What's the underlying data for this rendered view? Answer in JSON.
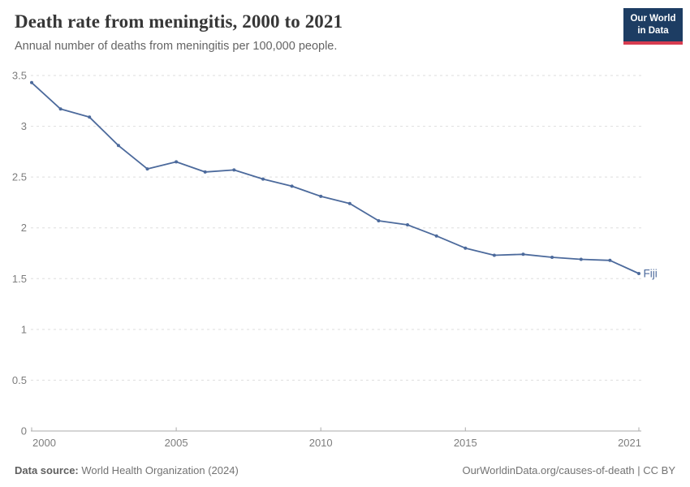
{
  "header": {
    "title": "Death rate from meningitis, 2000 to 2021",
    "subtitle": "Annual number of deaths from meningitis per 100,000 people."
  },
  "logo": {
    "line1": "Our World",
    "line2": "in Data",
    "bg_color": "#1d3d63",
    "accent_color": "#d73c50"
  },
  "chart_data": {
    "type": "line",
    "title": "Death rate from meningitis, 2000 to 2021",
    "xlabel": "",
    "ylabel": "Annual deaths from meningitis per 100,000 people",
    "x": [
      2000,
      2001,
      2002,
      2003,
      2004,
      2005,
      2006,
      2007,
      2008,
      2009,
      2010,
      2011,
      2012,
      2013,
      2014,
      2015,
      2016,
      2017,
      2018,
      2019,
      2020,
      2021
    ],
    "series": [
      {
        "name": "Fiji",
        "color": "#4C6A9C",
        "values": [
          3.43,
          3.17,
          3.09,
          2.81,
          2.58,
          2.65,
          2.55,
          2.57,
          2.48,
          2.41,
          2.31,
          2.24,
          2.07,
          2.03,
          1.92,
          1.8,
          1.73,
          1.74,
          1.71,
          1.69,
          1.68,
          1.55
        ]
      }
    ],
    "xlim": [
      2000,
      2021
    ],
    "ylim": [
      0,
      3.5
    ],
    "x_ticks": [
      2000,
      2005,
      2010,
      2015,
      2021
    ],
    "y_ticks": [
      0,
      0.5,
      1,
      1.5,
      2,
      2.5,
      3,
      3.5
    ],
    "grid": "horizontal-dashed",
    "legend_position": "end-of-line-label",
    "entity_label": "Fiji",
    "colors": {
      "grid": "#dedede",
      "axis": "#ababab",
      "tick_label": "#7d7d7d",
      "line": "#4C6A9C"
    }
  },
  "footer": {
    "source_label": "Data source:",
    "source_value": " World Health Organization (2024)",
    "link_text": "OurWorldinData.org/causes-of-death",
    "license_text": " | CC BY"
  }
}
